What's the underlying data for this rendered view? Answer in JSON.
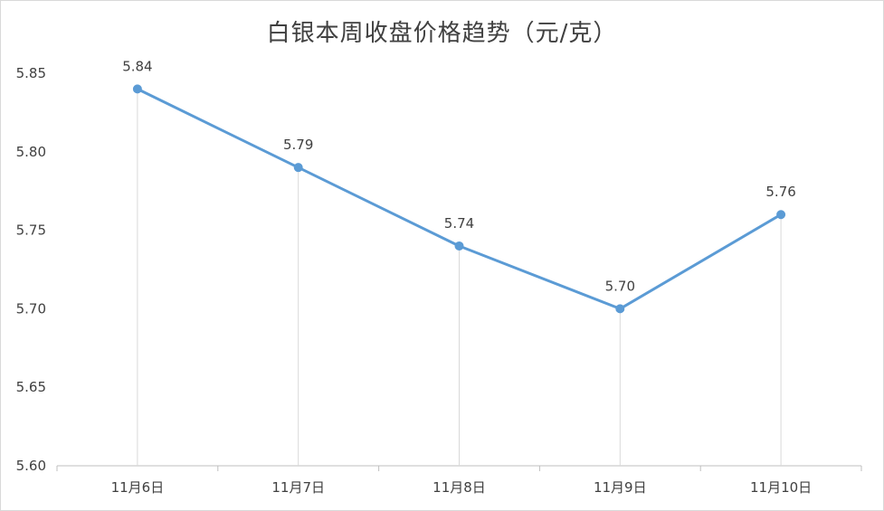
{
  "chart_data": {
    "type": "line",
    "title": "白银本周收盘价格趋势（元/克）",
    "categories": [
      "11月6日",
      "11月7日",
      "11月8日",
      "11月9日",
      "11月10日"
    ],
    "series": [
      {
        "values": [
          5.84,
          5.79,
          5.74,
          5.7,
          5.76
        ],
        "data_labels": [
          "5.84",
          "5.79",
          "5.74",
          "5.70",
          "5.76"
        ]
      }
    ],
    "ylim": [
      5.6,
      5.85
    ],
    "yticks": [
      "5.60",
      "5.65",
      "5.70",
      "5.75",
      "5.80",
      "5.85"
    ],
    "grid": false,
    "drop_lines": true,
    "legend": "none",
    "colors": {
      "line": "#5b9bd5",
      "drop_line": "#d9d9d9",
      "axis": "#bfbfbf",
      "text": "#404040"
    }
  }
}
